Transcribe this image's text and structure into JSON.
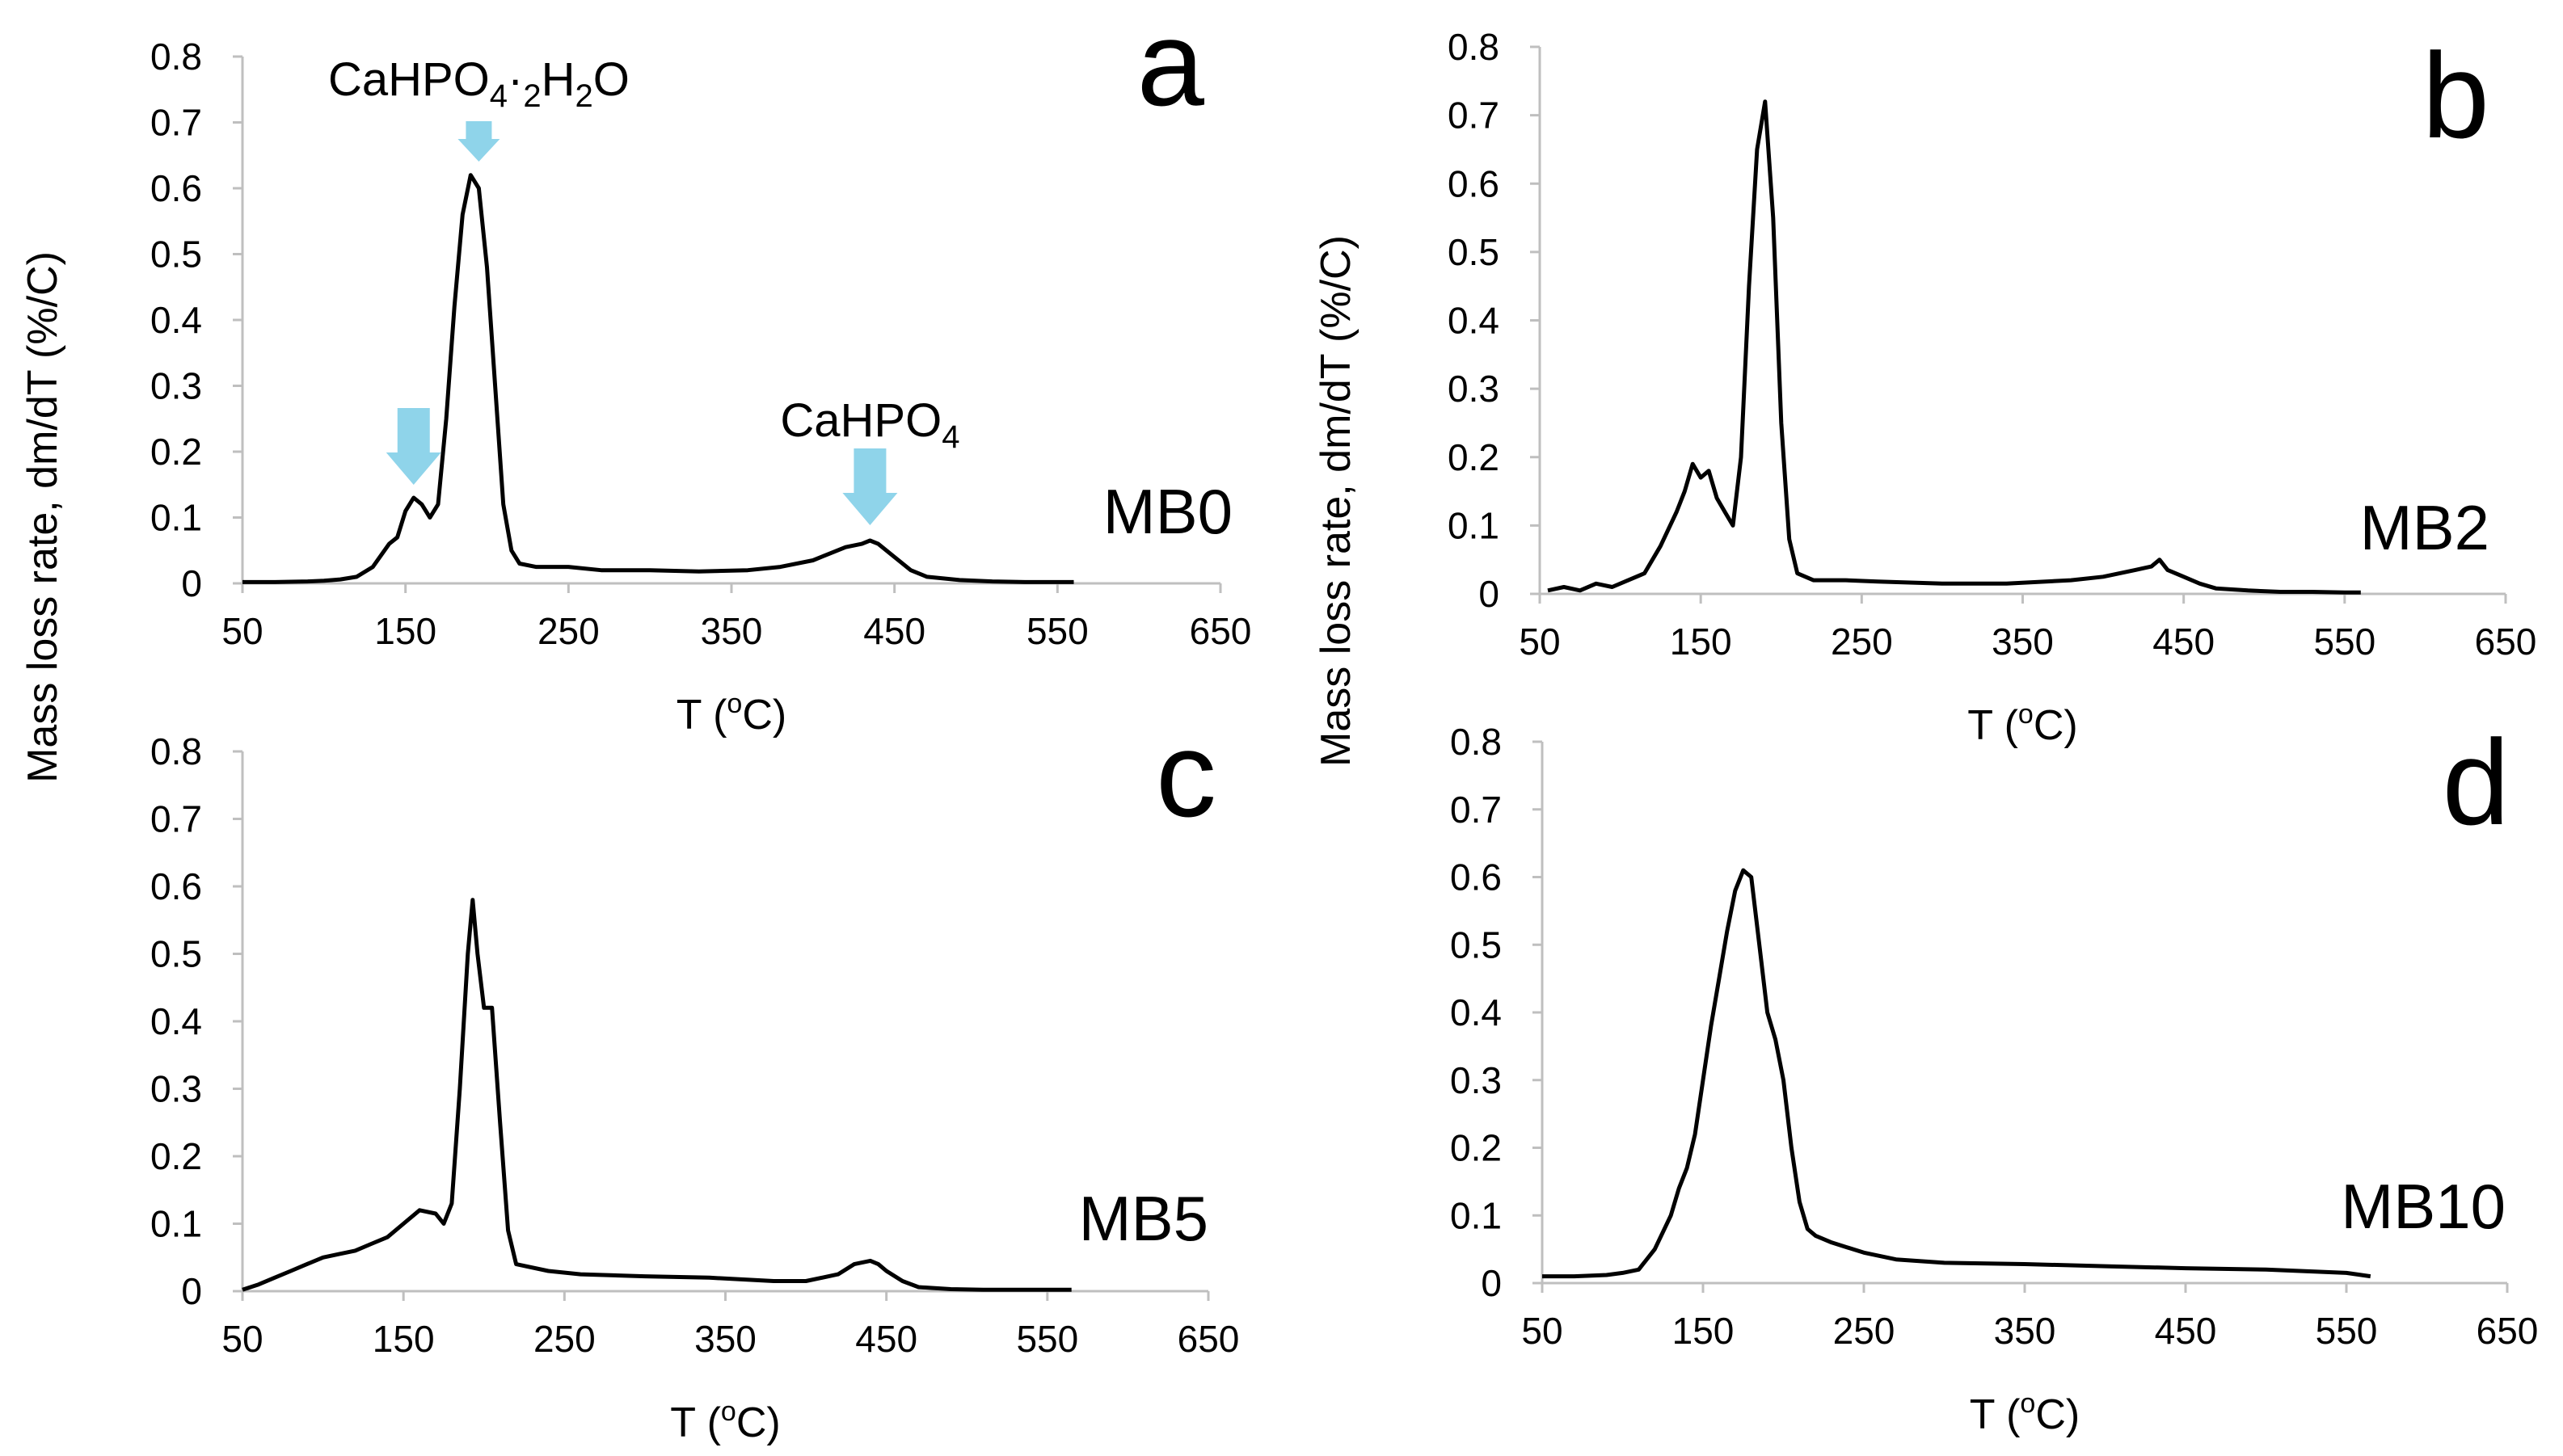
{
  "figure": {
    "y_axis_label": "Mass loss rate, dm/dT (%/C)"
  },
  "chart_data": [
    {
      "type": "line",
      "panel": "a",
      "sample_label": "MB0",
      "xlabel": "T (oC)",
      "ylabel": "Mass loss rate, dm/dT (%/C)",
      "xlim": [
        50,
        650
      ],
      "ylim": [
        0,
        0.8
      ],
      "xticks": [
        "50",
        "150",
        "250",
        "350",
        "450",
        "550",
        "650"
      ],
      "yticks": [
        "0",
        "0.1",
        "0.2",
        "0.3",
        "0.4",
        "0.5",
        "0.6",
        "0.7",
        "0.8"
      ],
      "series": [
        {
          "x": [
            50,
            70,
            90,
            100,
            110,
            120,
            130,
            140,
            145,
            150,
            155,
            160,
            165,
            170,
            175,
            180,
            185,
            190,
            195,
            200,
            205,
            210,
            215,
            220,
            230,
            250,
            270,
            300,
            330,
            360,
            380,
            400,
            410,
            420,
            430,
            435,
            440,
            450,
            460,
            470,
            490,
            510,
            530,
            550,
            560
          ],
          "y": [
            0.002,
            0.002,
            0.003,
            0.004,
            0.006,
            0.01,
            0.025,
            0.06,
            0.07,
            0.11,
            0.13,
            0.12,
            0.1,
            0.12,
            0.25,
            0.42,
            0.56,
            0.62,
            0.6,
            0.48,
            0.3,
            0.12,
            0.05,
            0.03,
            0.025,
            0.025,
            0.02,
            0.02,
            0.018,
            0.02,
            0.025,
            0.035,
            0.045,
            0.055,
            0.06,
            0.065,
            0.06,
            0.04,
            0.02,
            0.01,
            0.005,
            0.003,
            0.002,
            0.002,
            0.002
          ]
        }
      ],
      "annotations": [
        {
          "label": "CaHPO4·2H2O",
          "arrow_x": 195
        },
        {
          "label": "",
          "arrow_x": 155
        },
        {
          "label": "CaHPO4",
          "arrow_x": 435
        }
      ]
    },
    {
      "type": "line",
      "panel": "b",
      "sample_label": "MB2",
      "xlabel": "T (oC)",
      "ylabel": "Mass loss rate, dm/dT (%/C)",
      "xlim": [
        50,
        650
      ],
      "ylim": [
        0,
        0.8
      ],
      "xticks": [
        "50",
        "150",
        "250",
        "350",
        "450",
        "550",
        "650"
      ],
      "yticks": [
        "0",
        "0.1",
        "0.2",
        "0.3",
        "0.4",
        "0.5",
        "0.6",
        "0.7",
        "0.8"
      ],
      "series": [
        {
          "x": [
            55,
            65,
            75,
            85,
            95,
            105,
            115,
            125,
            135,
            140,
            145,
            150,
            155,
            160,
            165,
            170,
            175,
            180,
            185,
            190,
            195,
            200,
            205,
            210,
            220,
            240,
            260,
            300,
            340,
            380,
            400,
            420,
            430,
            435,
            440,
            450,
            460,
            470,
            490,
            510,
            530,
            550,
            560
          ],
          "y": [
            0.005,
            0.01,
            0.005,
            0.015,
            0.01,
            0.02,
            0.03,
            0.07,
            0.12,
            0.15,
            0.19,
            0.17,
            0.18,
            0.14,
            0.12,
            0.1,
            0.2,
            0.45,
            0.65,
            0.72,
            0.55,
            0.25,
            0.08,
            0.03,
            0.02,
            0.02,
            0.018,
            0.015,
            0.015,
            0.02,
            0.025,
            0.035,
            0.04,
            0.05,
            0.035,
            0.025,
            0.015,
            0.008,
            0.005,
            0.003,
            0.003,
            0.002,
            0.002
          ]
        }
      ]
    },
    {
      "type": "line",
      "panel": "c",
      "sample_label": "MB5",
      "xlabel": "T (oC)",
      "ylabel": "Mass loss rate, dm/dT (%/C)",
      "xlim": [
        50,
        650
      ],
      "ylim": [
        0,
        0.8
      ],
      "xticks": [
        "50",
        "150",
        "250",
        "350",
        "450",
        "550",
        "650"
      ],
      "yticks": [
        "0",
        "0.1",
        "0.2",
        "0.3",
        "0.4",
        "0.5",
        "0.6",
        "0.7",
        "0.8"
      ],
      "series": [
        {
          "x": [
            50,
            60,
            70,
            80,
            90,
            100,
            110,
            120,
            130,
            140,
            150,
            160,
            170,
            175,
            180,
            185,
            190,
            193,
            196,
            200,
            205,
            210,
            215,
            220,
            240,
            260,
            300,
            340,
            380,
            400,
            420,
            430,
            440,
            445,
            450,
            460,
            470,
            490,
            510,
            530,
            550,
            565
          ],
          "y": [
            0.002,
            0.01,
            0.02,
            0.03,
            0.04,
            0.05,
            0.055,
            0.06,
            0.07,
            0.08,
            0.1,
            0.12,
            0.115,
            0.1,
            0.13,
            0.3,
            0.5,
            0.58,
            0.5,
            0.42,
            0.42,
            0.25,
            0.09,
            0.04,
            0.03,
            0.025,
            0.022,
            0.02,
            0.015,
            0.015,
            0.025,
            0.04,
            0.045,
            0.04,
            0.03,
            0.015,
            0.006,
            0.003,
            0.002,
            0.002,
            0.002,
            0.002
          ]
        }
      ]
    },
    {
      "type": "line",
      "panel": "d",
      "sample_label": "MB10",
      "xlabel": "T (oC)",
      "ylabel": "Mass loss rate, dm/dT (%/C)",
      "xlim": [
        50,
        650
      ],
      "ylim": [
        0,
        0.8
      ],
      "xticks": [
        "50",
        "150",
        "250",
        "350",
        "450",
        "550",
        "650"
      ],
      "yticks": [
        "0",
        "0.1",
        "0.2",
        "0.3",
        "0.4",
        "0.5",
        "0.6",
        "0.7",
        "0.8"
      ],
      "series": [
        {
          "x": [
            50,
            70,
            90,
            100,
            110,
            120,
            130,
            135,
            140,
            145,
            150,
            155,
            160,
            165,
            170,
            175,
            180,
            185,
            190,
            195,
            200,
            205,
            210,
            215,
            220,
            230,
            250,
            270,
            300,
            350,
            400,
            450,
            500,
            550,
            565
          ],
          "y": [
            0.01,
            0.01,
            0.012,
            0.015,
            0.02,
            0.05,
            0.1,
            0.14,
            0.17,
            0.22,
            0.3,
            0.38,
            0.45,
            0.52,
            0.58,
            0.61,
            0.6,
            0.5,
            0.4,
            0.36,
            0.3,
            0.2,
            0.12,
            0.08,
            0.07,
            0.06,
            0.045,
            0.035,
            0.03,
            0.028,
            0.025,
            0.022,
            0.02,
            0.015,
            0.01
          ]
        }
      ]
    }
  ]
}
